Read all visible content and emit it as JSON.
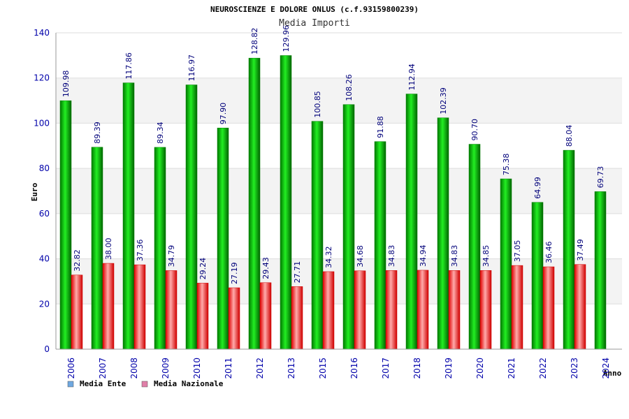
{
  "chart_data": {
    "type": "bar",
    "title": "NEUROSCIENZE E DOLORE ONLUS (c.f.93159800239)",
    "subtitle": "Media Importi",
    "ylabel": "Euro",
    "xlabel": "Anno",
    "ylim": [
      0,
      140
    ],
    "yticks": [
      0,
      20,
      40,
      60,
      80,
      100,
      120,
      140
    ],
    "grid": true,
    "legend_position": "bottom-left",
    "categories": [
      "2006",
      "2007",
      "2008",
      "2009",
      "2010",
      "2011",
      "2012",
      "2013",
      "2015",
      "2016",
      "2017",
      "2018",
      "2019",
      "2020",
      "2021",
      "2022",
      "2023",
      "2024"
    ],
    "series": [
      {
        "name": "Media Ente",
        "color": "#00aa00",
        "legend_color": "#6fa8e0",
        "values": [
          109.98,
          89.39,
          117.86,
          89.34,
          116.97,
          97.9,
          128.82,
          129.96,
          100.85,
          108.26,
          91.88,
          112.94,
          102.39,
          90.7,
          75.38,
          64.99,
          88.04,
          69.73
        ],
        "labels": [
          "109.98",
          "89.39",
          "117.86",
          "89.34",
          "116.97",
          "97.90",
          "128.82",
          "129.96",
          "100.85",
          "108.26",
          "91.88",
          "112.94",
          "102.39",
          "90.70",
          "75.38",
          "64.99",
          "88.04",
          "69.73"
        ]
      },
      {
        "name": "Media Nazionale",
        "color": "#ee1111",
        "legend_color": "#e07fa8",
        "values": [
          32.82,
          38.0,
          37.36,
          34.79,
          29.24,
          27.19,
          29.43,
          27.71,
          34.32,
          34.68,
          34.83,
          34.94,
          34.83,
          34.85,
          37.05,
          36.46,
          37.49,
          null
        ],
        "labels": [
          "32.82",
          "38.00",
          "37.36",
          "34.79",
          "29.24",
          "27.19",
          "29.43",
          "27.71",
          "34.32",
          "34.68",
          "34.83",
          "34.94",
          "34.83",
          "34.85",
          "37.05",
          "36.46",
          "37.49",
          ""
        ]
      }
    ]
  }
}
